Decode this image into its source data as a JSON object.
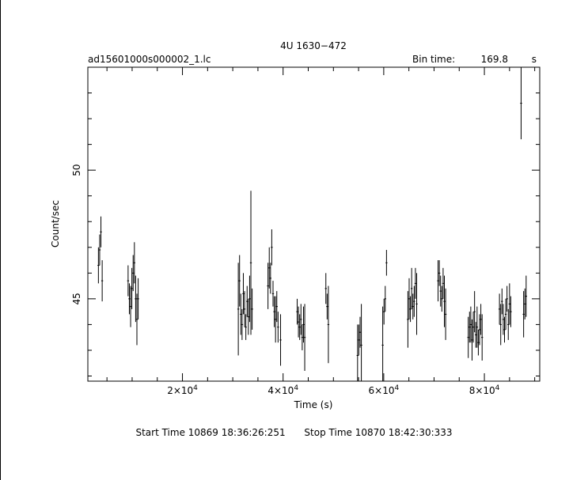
{
  "chart_data": {
    "type": "scatter",
    "title": "4U 1630−472",
    "file_label": "ad15601000s000002_1.lc",
    "bin_time_label": "Bin time:",
    "bin_time_value": "169.8",
    "bin_time_unit": "s",
    "xlabel": "Time (s)",
    "ylabel": "Count/sec",
    "xlim": [
      1200,
      91000
    ],
    "ylim": [
      41.8,
      54.0
    ],
    "x_ticks": [
      {
        "value": 20000,
        "mant": "2",
        "exp": "4"
      },
      {
        "value": 40000,
        "mant": "4",
        "exp": "4"
      },
      {
        "value": 60000,
        "mant": "6",
        "exp": "4"
      },
      {
        "value": 80000,
        "mant": "8",
        "exp": "4"
      }
    ],
    "y_ticks": [
      {
        "value": 45,
        "label": "45"
      },
      {
        "value": 50,
        "label": "50"
      }
    ],
    "points": [
      {
        "x": 3300,
        "y": 46.3,
        "err": 0.7
      },
      {
        "x": 3550,
        "y": 46.9,
        "err": 0.6
      },
      {
        "x": 3800,
        "y": 47.6,
        "err": 0.6
      },
      {
        "x": 4050,
        "y": 45.7,
        "err": 0.8
      },
      {
        "x": 9200,
        "y": 45.7,
        "err": 0.6
      },
      {
        "x": 9450,
        "y": 45.0,
        "err": 0.6
      },
      {
        "x": 9700,
        "y": 44.7,
        "err": 0.8
      },
      {
        "x": 9950,
        "y": 45.4,
        "err": 0.8
      },
      {
        "x": 10200,
        "y": 46.0,
        "err": 0.7
      },
      {
        "x": 10450,
        "y": 46.4,
        "err": 0.8
      },
      {
        "x": 10700,
        "y": 45.0,
        "err": 0.9
      },
      {
        "x": 10950,
        "y": 44.2,
        "err": 1.0
      },
      {
        "x": 11200,
        "y": 45.0,
        "err": 0.8
      },
      {
        "x": 31100,
        "y": 44.6,
        "err": 1.8
      },
      {
        "x": 31350,
        "y": 45.7,
        "err": 1.0
      },
      {
        "x": 31600,
        "y": 44.4,
        "err": 0.8
      },
      {
        "x": 31850,
        "y": 44.0,
        "err": 0.6
      },
      {
        "x": 32100,
        "y": 45.2,
        "err": 0.8
      },
      {
        "x": 32350,
        "y": 44.6,
        "err": 0.7
      },
      {
        "x": 32600,
        "y": 43.9,
        "err": 0.5
      },
      {
        "x": 32850,
        "y": 44.9,
        "err": 0.6
      },
      {
        "x": 33100,
        "y": 44.3,
        "err": 0.7
      },
      {
        "x": 33350,
        "y": 45.0,
        "err": 0.9
      },
      {
        "x": 33600,
        "y": 46.4,
        "err": 2.8
      },
      {
        "x": 33850,
        "y": 44.6,
        "err": 0.8
      },
      {
        "x": 37000,
        "y": 45.5,
        "err": 0.9
      },
      {
        "x": 37250,
        "y": 46.2,
        "err": 0.8
      },
      {
        "x": 37500,
        "y": 45.8,
        "err": 0.6
      },
      {
        "x": 37750,
        "y": 47.0,
        "err": 0.7
      },
      {
        "x": 38000,
        "y": 45.2,
        "err": 0.5
      },
      {
        "x": 38250,
        "y": 44.5,
        "err": 0.6
      },
      {
        "x": 38500,
        "y": 44.2,
        "err": 0.9
      },
      {
        "x": 38750,
        "y": 44.7,
        "err": 0.6
      },
      {
        "x": 39000,
        "y": 43.9,
        "err": 0.6
      },
      {
        "x": 39500,
        "y": 43.4,
        "err": 1.0
      },
      {
        "x": 42800,
        "y": 44.5,
        "err": 0.5
      },
      {
        "x": 43050,
        "y": 44.1,
        "err": 0.6
      },
      {
        "x": 43300,
        "y": 43.9,
        "err": 0.5
      },
      {
        "x": 43550,
        "y": 44.2,
        "err": 0.6
      },
      {
        "x": 43800,
        "y": 43.5,
        "err": 0.5
      },
      {
        "x": 44050,
        "y": 44.0,
        "err": 0.7
      },
      {
        "x": 44300,
        "y": 43.5,
        "err": 1.3
      },
      {
        "x": 48500,
        "y": 45.4,
        "err": 0.6
      },
      {
        "x": 48750,
        "y": 44.7,
        "err": 0.5
      },
      {
        "x": 49000,
        "y": 44.0,
        "err": 1.5
      },
      {
        "x": 54800,
        "y": 42.8,
        "err": 1.2
      },
      {
        "x": 55050,
        "y": 43.4,
        "err": 0.6
      },
      {
        "x": 55300,
        "y": 43.7,
        "err": 0.6
      },
      {
        "x": 55550,
        "y": 43.2,
        "err": 1.6
      },
      {
        "x": 59800,
        "y": 43.2,
        "err": 1.5
      },
      {
        "x": 60050,
        "y": 44.5,
        "err": 0.5
      },
      {
        "x": 60300,
        "y": 45.0,
        "err": 0.5
      },
      {
        "x": 60550,
        "y": 46.4,
        "err": 0.5
      },
      {
        "x": 64800,
        "y": 44.2,
        "err": 1.1
      },
      {
        "x": 65050,
        "y": 45.0,
        "err": 0.8
      },
      {
        "x": 65300,
        "y": 44.6,
        "err": 0.5
      },
      {
        "x": 65550,
        "y": 45.4,
        "err": 0.8
      },
      {
        "x": 65800,
        "y": 44.7,
        "err": 0.5
      },
      {
        "x": 66050,
        "y": 44.9,
        "err": 0.6
      },
      {
        "x": 66300,
        "y": 45.6,
        "err": 0.6
      },
      {
        "x": 66550,
        "y": 44.8,
        "err": 1.2
      },
      {
        "x": 70800,
        "y": 45.7,
        "err": 0.8
      },
      {
        "x": 71050,
        "y": 46.0,
        "err": 0.5
      },
      {
        "x": 71300,
        "y": 45.3,
        "err": 0.6
      },
      {
        "x": 71550,
        "y": 45.0,
        "err": 0.5
      },
      {
        "x": 71800,
        "y": 45.6,
        "err": 0.6
      },
      {
        "x": 72050,
        "y": 44.9,
        "err": 1.0
      },
      {
        "x": 72300,
        "y": 44.4,
        "err": 1.0
      },
      {
        "x": 76800,
        "y": 43.5,
        "err": 0.8
      },
      {
        "x": 77050,
        "y": 43.9,
        "err": 0.6
      },
      {
        "x": 77300,
        "y": 44.0,
        "err": 0.7
      },
      {
        "x": 77550,
        "y": 43.4,
        "err": 0.8
      },
      {
        "x": 77800,
        "y": 43.9,
        "err": 0.6
      },
      {
        "x": 78050,
        "y": 44.5,
        "err": 0.8
      },
      {
        "x": 78300,
        "y": 43.6,
        "err": 0.5
      },
      {
        "x": 78550,
        "y": 43.9,
        "err": 0.8
      },
      {
        "x": 78800,
        "y": 43.3,
        "err": 0.5
      },
      {
        "x": 79050,
        "y": 43.8,
        "err": 0.6
      },
      {
        "x": 79300,
        "y": 44.2,
        "err": 0.6
      },
      {
        "x": 79550,
        "y": 43.5,
        "err": 0.9
      },
      {
        "x": 83000,
        "y": 44.6,
        "err": 0.6
      },
      {
        "x": 83250,
        "y": 44.0,
        "err": 0.8
      },
      {
        "x": 83500,
        "y": 44.9,
        "err": 0.5
      },
      {
        "x": 83750,
        "y": 44.2,
        "err": 0.6
      },
      {
        "x": 84000,
        "y": 43.8,
        "err": 0.5
      },
      {
        "x": 84250,
        "y": 44.4,
        "err": 0.6
      },
      {
        "x": 84500,
        "y": 45.0,
        "err": 0.5
      },
      {
        "x": 84750,
        "y": 44.0,
        "err": 0.6
      },
      {
        "x": 85000,
        "y": 44.8,
        "err": 0.8
      },
      {
        "x": 85250,
        "y": 44.5,
        "err": 0.6
      },
      {
        "x": 87300,
        "y": 52.6,
        "err": 1.4
      },
      {
        "x": 87800,
        "y": 44.4,
        "err": 0.9
      },
      {
        "x": 88050,
        "y": 44.8,
        "err": 0.6
      },
      {
        "x": 88300,
        "y": 45.1,
        "err": 0.8
      }
    ]
  },
  "footer": {
    "start_time": "Start Time 10869  18:36:26:251",
    "stop_time": "Stop Time 10870  18:42:30:333"
  }
}
